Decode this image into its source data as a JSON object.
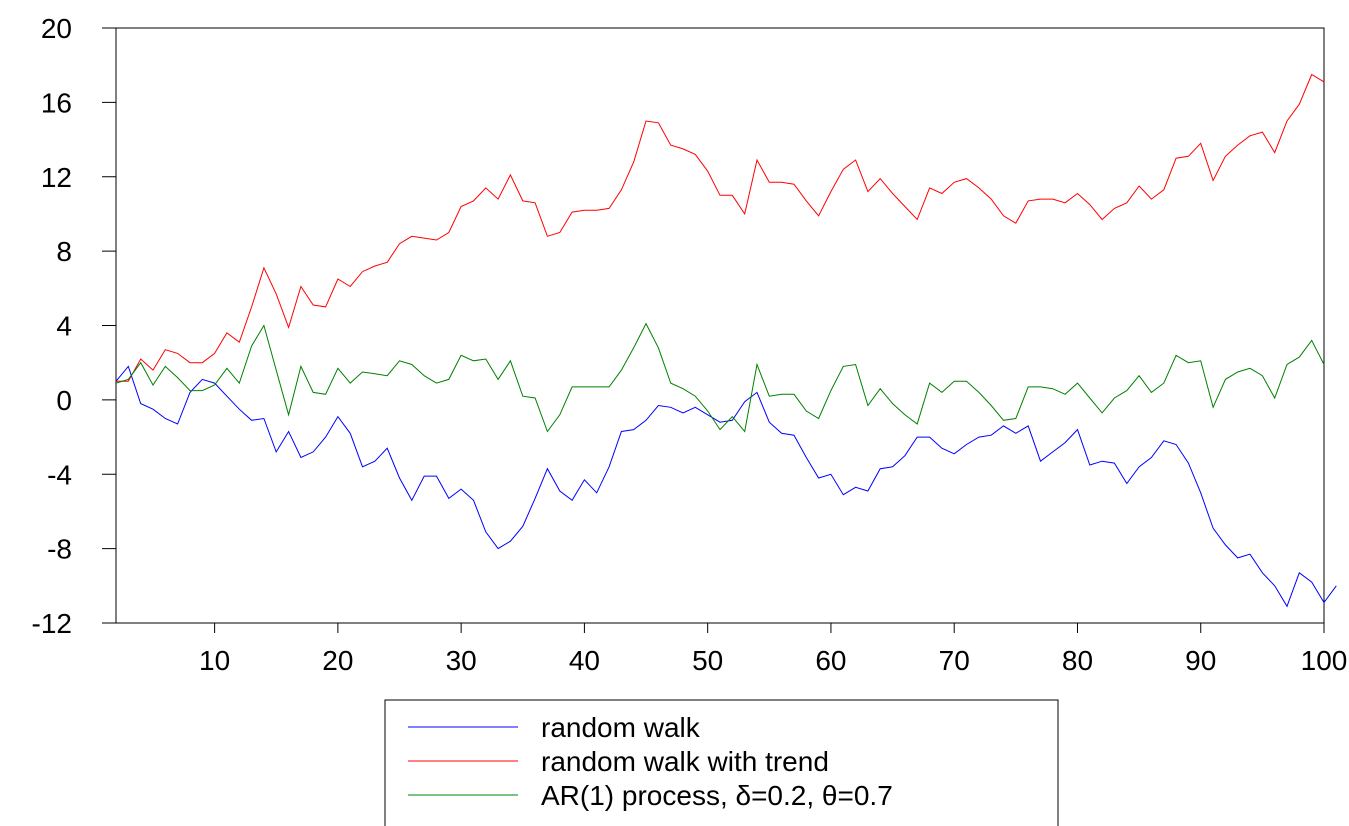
{
  "chart_data": {
    "type": "line",
    "title": "",
    "xlabel": "",
    "ylabel": "",
    "xlim": [
      2,
      100
    ],
    "ylim": [
      -12,
      20
    ],
    "xticks": [
      10,
      20,
      30,
      40,
      50,
      60,
      70,
      80,
      90,
      100
    ],
    "yticks": [
      20,
      16,
      12,
      8,
      4,
      0,
      -4,
      -8,
      -12
    ],
    "grid": false,
    "legend_position": "bottom-center",
    "x_start": 2,
    "series": [
      {
        "name": "random walk",
        "color": "#0000ff",
        "values": [
          1.0,
          1.8,
          -0.2,
          -0.5,
          -1.0,
          -1.3,
          0.4,
          1.1,
          0.9,
          0.2,
          -0.5,
          -1.1,
          -1.0,
          -2.8,
          -1.7,
          -3.1,
          -2.8,
          -2.0,
          -0.9,
          -1.8,
          -3.6,
          -3.3,
          -2.6,
          -4.2,
          -5.4,
          -4.1,
          -4.1,
          -5.3,
          -4.8,
          -5.4,
          -7.1,
          -8.0,
          -7.6,
          -6.8,
          -5.3,
          -3.7,
          -4.9,
          -5.4,
          -4.3,
          -5.0,
          -3.6,
          -1.7,
          -1.6,
          -1.1,
          -0.3,
          -0.4,
          -0.7,
          -0.4,
          -0.8,
          -1.2,
          -1.1,
          -0.1,
          0.4,
          -1.2,
          -1.8,
          -1.9,
          -3.1,
          -4.2,
          -4.0,
          -5.1,
          -4.7,
          -4.9,
          -3.7,
          -3.6,
          -3.0,
          -2.0,
          -2.0,
          -2.6,
          -2.9,
          -2.4,
          -2.0,
          -1.9,
          -1.4,
          -1.8,
          -1.4,
          -3.3,
          -2.8,
          -2.3,
          -1.6,
          -3.5,
          -3.3,
          -3.4,
          -4.5,
          -3.6,
          -3.1,
          -2.2,
          -2.4,
          -3.4,
          -5.0,
          -6.9,
          -7.8,
          -8.5,
          -8.3,
          -9.3,
          -10.0,
          -11.1,
          -9.3,
          -9.8,
          -10.9,
          -10.0
        ]
      },
      {
        "name": "random walk with trend",
        "color": "#ff0000",
        "values": [
          1.0,
          1.0,
          2.2,
          1.6,
          2.7,
          2.5,
          2.0,
          2.0,
          2.5,
          3.6,
          3.1,
          5.0,
          7.1,
          5.7,
          3.9,
          6.1,
          5.1,
          5.0,
          6.5,
          6.1,
          6.9,
          7.2,
          7.4,
          8.4,
          8.8,
          8.7,
          8.6,
          9.0,
          10.4,
          10.7,
          11.4,
          10.8,
          12.1,
          10.7,
          10.6,
          8.8,
          9.0,
          10.1,
          10.2,
          10.2,
          10.3,
          11.3,
          12.8,
          15.0,
          14.9,
          13.7,
          13.5,
          13.2,
          12.3,
          11.0,
          11.0,
          10.0,
          12.9,
          11.7,
          11.7,
          11.6,
          10.7,
          9.9,
          11.2,
          12.4,
          12.9,
          11.2,
          11.9,
          11.1,
          10.4,
          9.7,
          11.4,
          11.1,
          11.7,
          11.9,
          11.4,
          10.8,
          9.9,
          9.5,
          10.7,
          10.8,
          10.8,
          10.6,
          11.1,
          10.5,
          9.7,
          10.3,
          10.6,
          11.5,
          10.8,
          11.3,
          13.0,
          13.1,
          13.8,
          11.8,
          13.1,
          13.7,
          14.2,
          14.4,
          13.3,
          15.0,
          15.9,
          17.5,
          17.1
        ]
      },
      {
        "name": "AR(1) process, δ=0.2, θ=0.7",
        "color": "#008000",
        "values": [
          0.9,
          1.1,
          2.0,
          0.8,
          1.8,
          1.2,
          0.5,
          0.5,
          0.8,
          1.7,
          0.9,
          2.9,
          4.0,
          1.6,
          -0.8,
          1.8,
          0.4,
          0.3,
          1.7,
          0.9,
          1.5,
          1.4,
          1.3,
          2.1,
          1.9,
          1.3,
          0.9,
          1.1,
          2.4,
          2.1,
          2.2,
          1.1,
          2.1,
          0.2,
          0.1,
          -1.7,
          -0.8,
          0.7,
          0.7,
          0.7,
          0.7,
          1.6,
          2.8,
          4.1,
          2.8,
          0.9,
          0.6,
          0.2,
          -0.6,
          -1.6,
          -0.9,
          -1.7,
          1.9,
          0.2,
          0.3,
          0.3,
          -0.6,
          -1.0,
          0.5,
          1.8,
          1.9,
          -0.3,
          0.6,
          -0.2,
          -0.8,
          -1.3,
          0.9,
          0.4,
          1.0,
          1.0,
          0.4,
          -0.3,
          -1.1,
          -1.0,
          0.7,
          0.7,
          0.6,
          0.3,
          0.9,
          0.1,
          -0.7,
          0.1,
          0.5,
          1.3,
          0.4,
          0.9,
          2.4,
          2.0,
          2.1,
          -0.4,
          1.1,
          1.5,
          1.7,
          1.3,
          0.1,
          1.9,
          2.3,
          3.2,
          1.9
        ]
      }
    ]
  }
}
